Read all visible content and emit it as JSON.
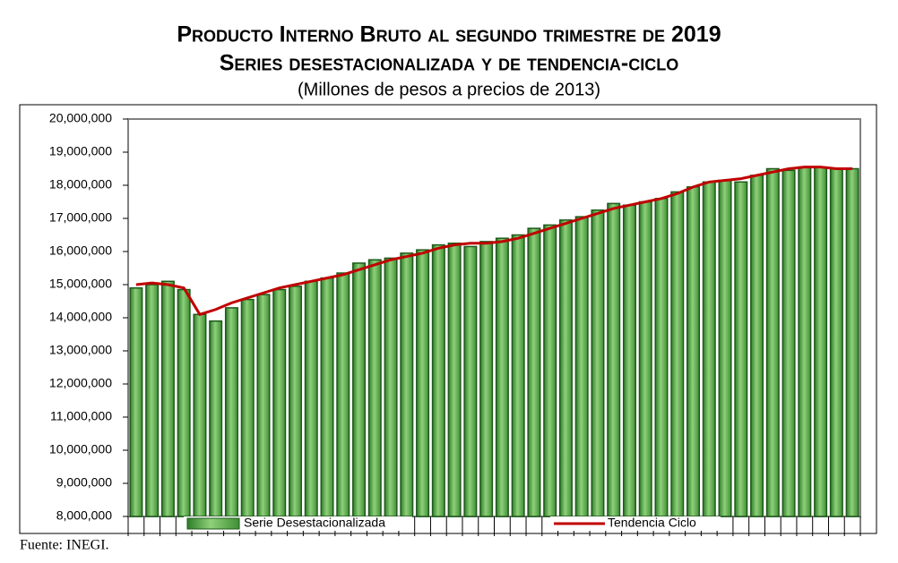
{
  "chart_data": {
    "type": "bar",
    "title": "Producto Interno Bruto al segundo trimestre de 2019",
    "subtitle": "Series desestacionalizada y de tendencia-ciclo",
    "units": "(Millones de pesos a precios de 2013)",
    "source": "Fuente: INEGI.",
    "categories": [
      null,
      null,
      null,
      null,
      null,
      null,
      null,
      null,
      null,
      null,
      null,
      null,
      null,
      null,
      null,
      null,
      null,
      null,
      null,
      null,
      null,
      null,
      null,
      null,
      null,
      null,
      null,
      null,
      null,
      null,
      null,
      null,
      null,
      null,
      null,
      null,
      null,
      null,
      null,
      null,
      null,
      null,
      null,
      null,
      null,
      null
    ],
    "series": [
      {
        "name": "Serie Desestacionalizada",
        "type": "bar",
        "color": "#5fa84a",
        "values": [
          14900000,
          15000000,
          15100000,
          14850000,
          14100000,
          13900000,
          14300000,
          14550000,
          14700000,
          14850000,
          14950000,
          15100000,
          15200000,
          15350000,
          15650000,
          15750000,
          15800000,
          15950000,
          16050000,
          16200000,
          16250000,
          16150000,
          16300000,
          16400000,
          16500000,
          16700000,
          16800000,
          16950000,
          17050000,
          17250000,
          17450000,
          17400000,
          17500000,
          17600000,
          17800000,
          17950000,
          18100000,
          18150000,
          18100000,
          18300000,
          18500000,
          18450000,
          18550000,
          18550000,
          18500000,
          18500000
        ]
      },
      {
        "name": "Tendencia Ciclo",
        "type": "line",
        "color": "#c00000",
        "values": [
          15000000,
          15050000,
          15000000,
          14900000,
          14100000,
          14250000,
          14450000,
          14600000,
          14750000,
          14900000,
          15000000,
          15100000,
          15200000,
          15300000,
          15450000,
          15600000,
          15750000,
          15850000,
          15950000,
          16100000,
          16200000,
          16250000,
          16250000,
          16300000,
          16400000,
          16550000,
          16700000,
          16850000,
          17000000,
          17150000,
          17300000,
          17400000,
          17500000,
          17600000,
          17750000,
          17950000,
          18100000,
          18150000,
          18200000,
          18300000,
          18400000,
          18500000,
          18550000,
          18550000,
          18500000,
          18500000
        ]
      }
    ],
    "ylim": [
      8000000,
      20000000
    ],
    "yticks": [
      {
        "value": 8000000,
        "label": "8,000,000"
      },
      {
        "value": 9000000,
        "label": "9,000,000"
      },
      {
        "value": 10000000,
        "label": "10,000,000"
      },
      {
        "value": 11000000,
        "label": "11,000,000"
      },
      {
        "value": 12000000,
        "label": "12,000,000"
      },
      {
        "value": 13000000,
        "label": "13,000,000"
      },
      {
        "value": 14000000,
        "label": "14,000,000"
      },
      {
        "value": 15000000,
        "label": "15,000,000"
      },
      {
        "value": 16000000,
        "label": "16,000,000"
      },
      {
        "value": 17000000,
        "label": "17,000,000"
      },
      {
        "value": 18000000,
        "label": "18,000,000"
      },
      {
        "value": 19000000,
        "label": "19,000,000"
      },
      {
        "value": 20000000,
        "label": "20,000,000"
      }
    ],
    "legend": "bottom"
  }
}
